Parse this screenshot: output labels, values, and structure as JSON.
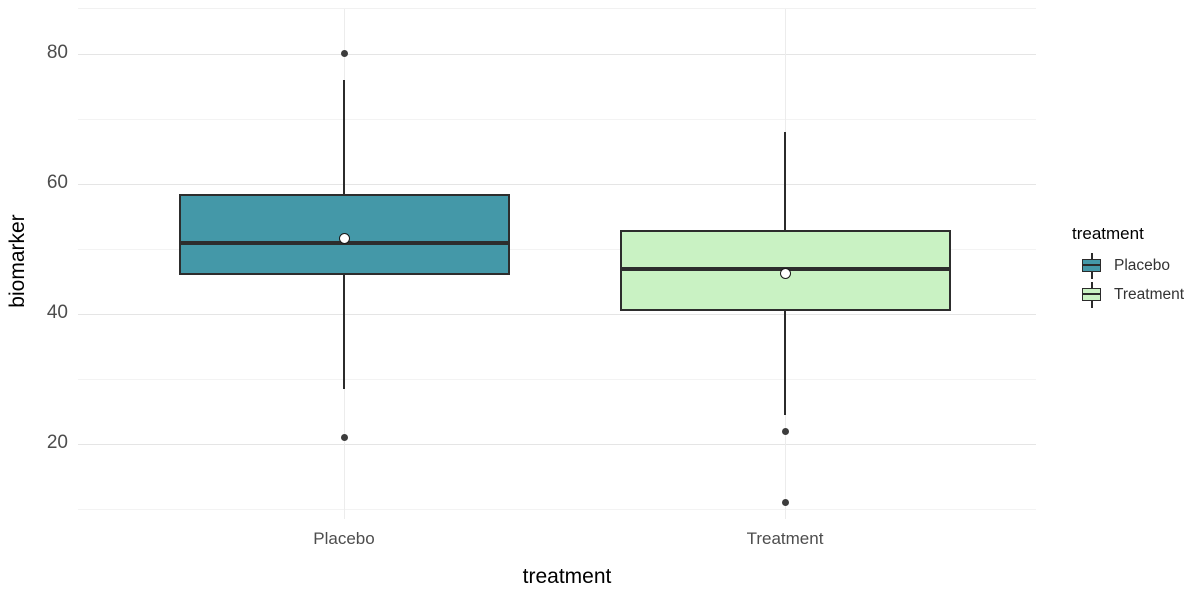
{
  "chart_data": {
    "type": "boxplot",
    "title": "",
    "xlabel": "treatment",
    "ylabel": "biomarker",
    "categories": [
      "Placebo",
      "Treatment"
    ],
    "y_axis": {
      "ticks": [
        80,
        60,
        40,
        20
      ],
      "minor_ticks": [
        70,
        50,
        30,
        10
      ],
      "domain_min": 8.5,
      "domain_max": 86.9,
      "grid": "on"
    },
    "series": [
      {
        "name": "Placebo",
        "fill": "#4498a8",
        "whisker_low": 28.5,
        "q1": 46,
        "median": 51,
        "q3": 58.5,
        "whisker_high": 76,
        "mean": 51.6,
        "outliers": [
          80,
          21
        ]
      },
      {
        "name": "Treatment",
        "fill": "#c9f2c3",
        "whisker_low": 24.5,
        "q1": 40.5,
        "median": 47,
        "q3": 53,
        "whisker_high": 68,
        "mean": 46.3,
        "outliers": [
          22,
          11
        ]
      }
    ],
    "legend": {
      "title": "treatment",
      "position": "right",
      "entries": [
        {
          "label": "Placebo",
          "color": "#4498a8"
        },
        {
          "label": "Treatment",
          "color": "#c9f2c3"
        }
      ]
    },
    "style": {
      "outline_color": "#2d2d2d",
      "outlier_color": "#3c3c3c",
      "mean_dot_fill": "#ffffff",
      "major_grid_color": "#e5e5e5",
      "minor_grid_color": "#f3f3f3",
      "tick_label_color": "#4d4d4d",
      "title_color": "#000000",
      "background": "#ffffff"
    }
  }
}
